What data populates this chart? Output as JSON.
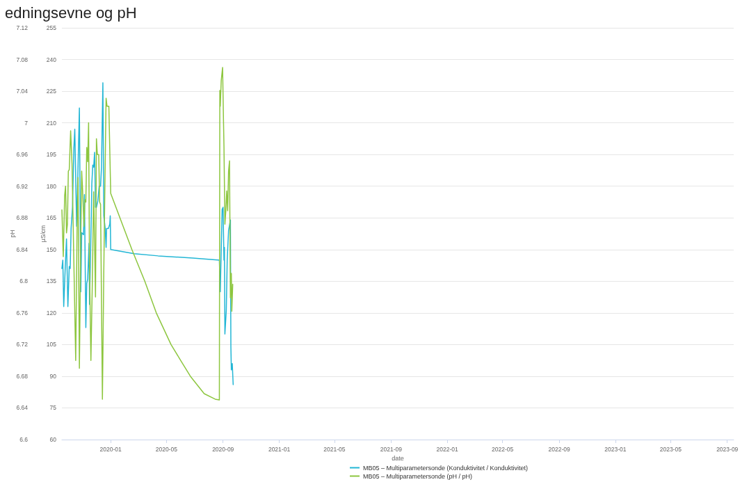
{
  "chart_data": {
    "type": "line",
    "title": "edningsevne og pH",
    "xlabel": "date",
    "ylabel": "µS/cm",
    "y2label": "pH",
    "xlim": [
      "2019-09-17",
      "2023-09-15"
    ],
    "xticks": [
      "2020-01",
      "2020-05",
      "2020-09",
      "2021-01",
      "2021-05",
      "2021-09",
      "2022-01",
      "2022-05",
      "2022-09",
      "2023-01",
      "2023-05",
      "2023-09"
    ],
    "ylim": [
      60,
      255
    ],
    "yticks": [
      60,
      75,
      90,
      105,
      120,
      135,
      150,
      165,
      180,
      195,
      210,
      225,
      240,
      255
    ],
    "y2lim": [
      6.6,
      7.12
    ],
    "y2ticks": [
      6.6,
      6.64,
      6.68,
      6.72,
      6.76,
      6.8,
      6.84,
      6.88,
      6.92,
      6.96,
      7,
      7.04,
      7.08,
      7.12
    ],
    "grid": "y",
    "legend": "bottom",
    "marker": "none",
    "line_style": "solid",
    "series": [
      {
        "name": "MB05 – Multiparametersonde (Konduktivitet / Konduktivitet)",
        "color": "#22b6d5",
        "x": [
          "2019-09-17",
          "2019-09-19",
          "2019-09-21",
          "2019-09-24",
          "2019-09-27",
          "2019-09-30",
          "2019-10-03",
          "2019-10-05",
          "2019-10-07",
          "2019-10-10",
          "2019-10-13",
          "2019-10-15",
          "2019-10-19",
          "2019-10-21",
          "2019-10-25",
          "2019-10-28",
          "2019-10-30",
          "2019-11-03",
          "2019-11-05",
          "2019-11-08",
          "2019-11-10",
          "2019-11-12",
          "2019-11-15",
          "2019-11-16",
          "2019-11-19",
          "2019-11-21",
          "2019-11-23",
          "2019-11-25",
          "2019-11-27",
          "2019-11-29",
          "2019-12-01",
          "2019-12-04",
          "2019-12-07",
          "2019-12-10",
          "2019-12-12",
          "2019-12-15",
          "2019-12-17",
          "2019-12-20",
          "2019-12-22",
          "2019-12-23",
          "2019-12-27",
          "2019-12-30",
          "2019-12-31",
          "2020-01-01",
          "2020-02-21",
          "2020-04-13",
          "2020-06-27",
          "2020-08-24",
          "2020-08-26",
          "2020-08-30",
          "2020-09-01",
          "2020-09-03",
          "2020-09-04",
          "2020-09-05",
          "2020-09-08",
          "2020-09-10",
          "2020-09-13",
          "2020-09-17",
          "2020-09-18",
          "2020-09-19",
          "2020-09-21",
          "2020-09-23"
        ],
        "values": [
          141,
          145,
          123,
          140,
          155,
          123,
          142,
          141,
          160,
          170,
          198,
          207,
          161,
          179,
          217,
          130,
          158,
          157,
          176,
          113,
          134,
          136,
          153,
          124,
          156,
          181,
          190,
          189,
          196,
          170,
          170,
          173,
          180,
          180,
          189,
          229,
          166,
          160,
          151,
          160,
          160,
          162,
          166,
          150,
          148,
          147,
          146,
          145,
          130,
          169,
          170,
          145,
          151,
          110,
          121,
          145,
          159,
          164,
          104,
          93,
          96,
          86
        ]
      },
      {
        "name": "MB05 – Multiparametersonde (pH / pH)",
        "color": "#8dc63f",
        "axis": "y2",
        "x": [
          "2019-09-17",
          "2019-09-20",
          "2019-09-23",
          "2019-09-25",
          "2019-09-27",
          "2019-09-29",
          "2019-10-01",
          "2019-10-03",
          "2019-10-06",
          "2019-10-09",
          "2019-10-12",
          "2019-10-17",
          "2019-10-20",
          "2019-10-22",
          "2019-10-25",
          "2019-10-28",
          "2019-10-30",
          "2019-11-01",
          "2019-11-04",
          "2019-11-06",
          "2019-11-08",
          "2019-11-10",
          "2019-11-12",
          "2019-11-14",
          "2019-11-16",
          "2019-11-19",
          "2019-11-22",
          "2019-11-25",
          "2019-11-29",
          "2019-12-01",
          "2019-12-03",
          "2019-12-06",
          "2019-12-08",
          "2019-12-10",
          "2019-12-14",
          "2019-12-17",
          "2019-12-20",
          "2019-12-22",
          "2019-12-24",
          "2019-12-28",
          "2020-01-01",
          "2020-02-16",
          "2020-03-15",
          "2020-04-09",
          "2020-05-11",
          "2020-06-02",
          "2020-06-22",
          "2020-07-22",
          "2020-08-15",
          "2020-08-24",
          "2020-08-25",
          "2020-08-26",
          "2020-08-28",
          "2020-08-31",
          "2020-09-01",
          "2020-09-02",
          "2020-09-03",
          "2020-09-05",
          "2020-09-07",
          "2020-09-09",
          "2020-09-11",
          "2020-09-13",
          "2020-09-15",
          "2020-09-17",
          "2020-09-19",
          "2020-09-20",
          "2020-09-22"
        ],
        "values": [
          6.89,
          6.831,
          6.908,
          6.92,
          6.861,
          6.872,
          6.939,
          6.941,
          6.99,
          6.948,
          6.855,
          6.7,
          6.869,
          6.931,
          6.69,
          6.855,
          6.939,
          6.914,
          6.869,
          6.903,
          6.9,
          6.969,
          6.951,
          7.0,
          6.818,
          6.7,
          6.796,
          6.913,
          6.78,
          6.98,
          6.96,
          6.96,
          6.9,
          6.897,
          6.651,
          6.813,
          6.948,
          7.031,
          7.021,
          7.021,
          6.911,
          6.84,
          6.8,
          6.76,
          6.72,
          6.699,
          6.68,
          6.658,
          6.651,
          6.65,
          7.041,
          7.021,
          7.053,
          7.07,
          7.07,
          7.001,
          6.97,
          6.872,
          6.889,
          6.914,
          6.889,
          6.939,
          6.952,
          6.779,
          6.81,
          6.762,
          6.796
        ]
      }
    ]
  }
}
